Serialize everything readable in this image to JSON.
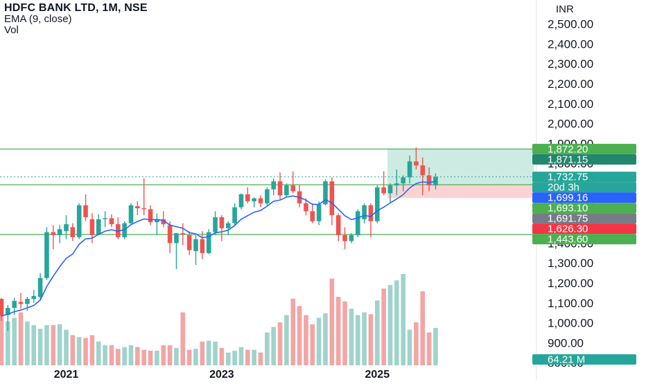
{
  "header": {
    "symbol_line": "HDFC BANK LTD, 1M, NSE",
    "indicator_line": "EMA (9, close)",
    "volume_line": "Vol",
    "currency": "INR"
  },
  "colors": {
    "up": "#26a69a",
    "down": "#ef5350",
    "vol_up": "#9fd3cc",
    "vol_down": "#f3a5a4",
    "ema": "#2962ff",
    "level_line": "#4caf50",
    "target_zone": "#cdebe3",
    "stop_zone": "#fbd3d3",
    "axis_text": "#131722"
  },
  "chart_data": {
    "type": "candlestick",
    "timeframe": "1M",
    "price_axis": {
      "ticks": [
        "800.00",
        "900.00",
        "1,000.00",
        "1,100.00",
        "1,200.00",
        "1,300.00",
        "1,400.00",
        "1,500.00",
        "1,600.00",
        "1,700.00",
        "1,800.00",
        "1,900.00",
        "2,000.00",
        "2,100.00",
        "2,200.00",
        "2,300.00",
        "2,400.00",
        "2,500.00"
      ],
      "range": [
        780,
        2620
      ]
    },
    "time_axis": {
      "ticks": [
        "2021",
        "2023",
        "2025"
      ],
      "tick_index": [
        10,
        34,
        58
      ]
    },
    "price_labels": [
      {
        "text": "1,872.20",
        "value": 1872.2,
        "color": "#4caf50"
      },
      {
        "text": "1,871.15",
        "value": 1871.15,
        "color": "#22876f"
      },
      {
        "text": "1,732.75",
        "value": 1732.75,
        "color": "#26a69a"
      },
      {
        "text": "20d 3h",
        "value": 1705,
        "color": "#26a69a"
      },
      {
        "text": "1,699.16",
        "value": 1699.16,
        "color": "#2962ff"
      },
      {
        "text": "1,693.10",
        "value": 1693.1,
        "color": "#4caf50"
      },
      {
        "text": "1,691.75",
        "value": 1691.75,
        "color": "#787b86"
      },
      {
        "text": "1,626.30",
        "value": 1626.3,
        "color": "#f23645"
      },
      {
        "text": "1,443.60",
        "value": 1443.6,
        "color": "#4caf50"
      }
    ],
    "volume_label": "64.21 M",
    "horizontal_levels": [
      1872.2,
      1693.1,
      1443.6
    ],
    "position": {
      "entry": 1693.1,
      "target": 1872.2,
      "stop": 1626.3,
      "start_index": 60
    },
    "last_price": 1732.75,
    "candles": [
      {
        "o": 1120,
        "h": 1125,
        "l": 1010,
        "c": 1035,
        "v": 0.7
      },
      {
        "o": 1040,
        "h": 1090,
        "l": 960,
        "c": 1075,
        "v": 0.48
      },
      {
        "o": 1075,
        "h": 1125,
        "l": 1040,
        "c": 1110,
        "v": 0.52
      },
      {
        "o": 1105,
        "h": 1150,
        "l": 1070,
        "c": 1095,
        "v": 0.58
      },
      {
        "o": 1095,
        "h": 1130,
        "l": 1060,
        "c": 1120,
        "v": 0.48
      },
      {
        "o": 1120,
        "h": 1165,
        "l": 1100,
        "c": 1135,
        "v": 0.44
      },
      {
        "o": 1130,
        "h": 1250,
        "l": 1120,
        "c": 1225,
        "v": 0.4
      },
      {
        "o": 1225,
        "h": 1480,
        "l": 1215,
        "c": 1455,
        "v": 0.44
      },
      {
        "o": 1455,
        "h": 1490,
        "l": 1370,
        "c": 1440,
        "v": 0.44
      },
      {
        "o": 1440,
        "h": 1490,
        "l": 1400,
        "c": 1470,
        "v": 0.45
      },
      {
        "o": 1460,
        "h": 1540,
        "l": 1420,
        "c": 1495,
        "v": 0.39
      },
      {
        "o": 1480,
        "h": 1500,
        "l": 1410,
        "c": 1430,
        "v": 0.33
      },
      {
        "o": 1430,
        "h": 1600,
        "l": 1420,
        "c": 1590,
        "v": 0.31
      },
      {
        "o": 1590,
        "h": 1645,
        "l": 1510,
        "c": 1530,
        "v": 0.3
      },
      {
        "o": 1520,
        "h": 1550,
        "l": 1400,
        "c": 1440,
        "v": 0.33
      },
      {
        "o": 1445,
        "h": 1545,
        "l": 1440,
        "c": 1520,
        "v": 0.26
      },
      {
        "o": 1520,
        "h": 1560,
        "l": 1480,
        "c": 1525,
        "v": 0.22
      },
      {
        "o": 1525,
        "h": 1545,
        "l": 1480,
        "c": 1495,
        "v": 0.22
      },
      {
        "o": 1495,
        "h": 1530,
        "l": 1420,
        "c": 1430,
        "v": 0.18
      },
      {
        "o": 1430,
        "h": 1510,
        "l": 1420,
        "c": 1500,
        "v": 0.2
      },
      {
        "o": 1500,
        "h": 1600,
        "l": 1490,
        "c": 1590,
        "v": 0.22
      },
      {
        "o": 1585,
        "h": 1610,
        "l": 1540,
        "c": 1575,
        "v": 0.2
      },
      {
        "o": 1575,
        "h": 1725,
        "l": 1540,
        "c": 1570,
        "v": 0.17
      },
      {
        "o": 1570,
        "h": 1590,
        "l": 1490,
        "c": 1505,
        "v": 0.16
      },
      {
        "o": 1505,
        "h": 1550,
        "l": 1440,
        "c": 1520,
        "v": 0.16
      },
      {
        "o": 1520,
        "h": 1560,
        "l": 1480,
        "c": 1495,
        "v": 0.22
      },
      {
        "o": 1490,
        "h": 1510,
        "l": 1350,
        "c": 1400,
        "v": 0.22
      },
      {
        "o": 1400,
        "h": 1450,
        "l": 1270,
        "c": 1450,
        "v": 0.19
      },
      {
        "o": 1450,
        "h": 1500,
        "l": 1390,
        "c": 1445,
        "v": 0.58
      },
      {
        "o": 1440,
        "h": 1460,
        "l": 1340,
        "c": 1365,
        "v": 0.17
      },
      {
        "o": 1360,
        "h": 1440,
        "l": 1290,
        "c": 1420,
        "v": 0.18
      },
      {
        "o": 1420,
        "h": 1460,
        "l": 1320,
        "c": 1350,
        "v": 0.26
      },
      {
        "o": 1350,
        "h": 1470,
        "l": 1345,
        "c": 1455,
        "v": 0.27
      },
      {
        "o": 1455,
        "h": 1560,
        "l": 1440,
        "c": 1530,
        "v": 0.26
      },
      {
        "o": 1530,
        "h": 1540,
        "l": 1410,
        "c": 1475,
        "v": 0.19
      },
      {
        "o": 1475,
        "h": 1510,
        "l": 1440,
        "c": 1500,
        "v": 0.14
      },
      {
        "o": 1500,
        "h": 1600,
        "l": 1490,
        "c": 1580,
        "v": 0.16
      },
      {
        "o": 1580,
        "h": 1650,
        "l": 1570,
        "c": 1645,
        "v": 0.2
      },
      {
        "o": 1645,
        "h": 1680,
        "l": 1600,
        "c": 1610,
        "v": 0.17
      },
      {
        "o": 1610,
        "h": 1630,
        "l": 1580,
        "c": 1625,
        "v": 0.17
      },
      {
        "o": 1625,
        "h": 1640,
        "l": 1580,
        "c": 1600,
        "v": 0.14
      },
      {
        "o": 1600,
        "h": 1680,
        "l": 1590,
        "c": 1670,
        "v": 0.36
      },
      {
        "o": 1670,
        "h": 1725,
        "l": 1640,
        "c": 1710,
        "v": 0.42
      },
      {
        "o": 1710,
        "h": 1755,
        "l": 1620,
        "c": 1640,
        "v": 0.47
      },
      {
        "o": 1640,
        "h": 1700,
        "l": 1630,
        "c": 1690,
        "v": 0.55
      },
      {
        "o": 1690,
        "h": 1760,
        "l": 1650,
        "c": 1660,
        "v": 0.73
      },
      {
        "o": 1660,
        "h": 1690,
        "l": 1580,
        "c": 1600,
        "v": 0.65
      },
      {
        "o": 1600,
        "h": 1625,
        "l": 1540,
        "c": 1560,
        "v": 0.55
      },
      {
        "o": 1560,
        "h": 1600,
        "l": 1500,
        "c": 1510,
        "v": 0.45
      },
      {
        "o": 1510,
        "h": 1610,
        "l": 1490,
        "c": 1595,
        "v": 0.52
      },
      {
        "o": 1595,
        "h": 1720,
        "l": 1590,
        "c": 1710,
        "v": 0.57
      },
      {
        "o": 1710,
        "h": 1730,
        "l": 1490,
        "c": 1540,
        "v": 0.95
      },
      {
        "o": 1540,
        "h": 1550,
        "l": 1410,
        "c": 1440,
        "v": 0.75
      },
      {
        "o": 1440,
        "h": 1480,
        "l": 1370,
        "c": 1410,
        "v": 0.7
      },
      {
        "o": 1410,
        "h": 1450,
        "l": 1400,
        "c": 1440,
        "v": 0.62
      },
      {
        "o": 1440,
        "h": 1570,
        "l": 1430,
        "c": 1560,
        "v": 0.55
      },
      {
        "o": 1520,
        "h": 1600,
        "l": 1500,
        "c": 1590,
        "v": 0.58
      },
      {
        "o": 1590,
        "h": 1600,
        "l": 1430,
        "c": 1510,
        "v": 0.56
      },
      {
        "o": 1510,
        "h": 1690,
        "l": 1500,
        "c": 1680,
        "v": 0.71
      },
      {
        "o": 1680,
        "h": 1760,
        "l": 1640,
        "c": 1650,
        "v": 0.84
      },
      {
        "o": 1650,
        "h": 1700,
        "l": 1600,
        "c": 1690,
        "v": 0.88
      },
      {
        "o": 1690,
        "h": 1770,
        "l": 1640,
        "c": 1700,
        "v": 0.93
      },
      {
        "o": 1700,
        "h": 1740,
        "l": 1660,
        "c": 1730,
        "v": 1.0
      },
      {
        "o": 1730,
        "h": 1840,
        "l": 1700,
        "c": 1810,
        "v": 0.39
      },
      {
        "o": 1810,
        "h": 1880,
        "l": 1770,
        "c": 1790,
        "v": 0.47
      },
      {
        "o": 1790,
        "h": 1830,
        "l": 1640,
        "c": 1740,
        "v": 0.81
      },
      {
        "o": 1740,
        "h": 1780,
        "l": 1660,
        "c": 1690,
        "v": 0.36
      },
      {
        "o": 1690,
        "h": 1750,
        "l": 1670,
        "c": 1732.75,
        "v": 0.41
      }
    ]
  }
}
